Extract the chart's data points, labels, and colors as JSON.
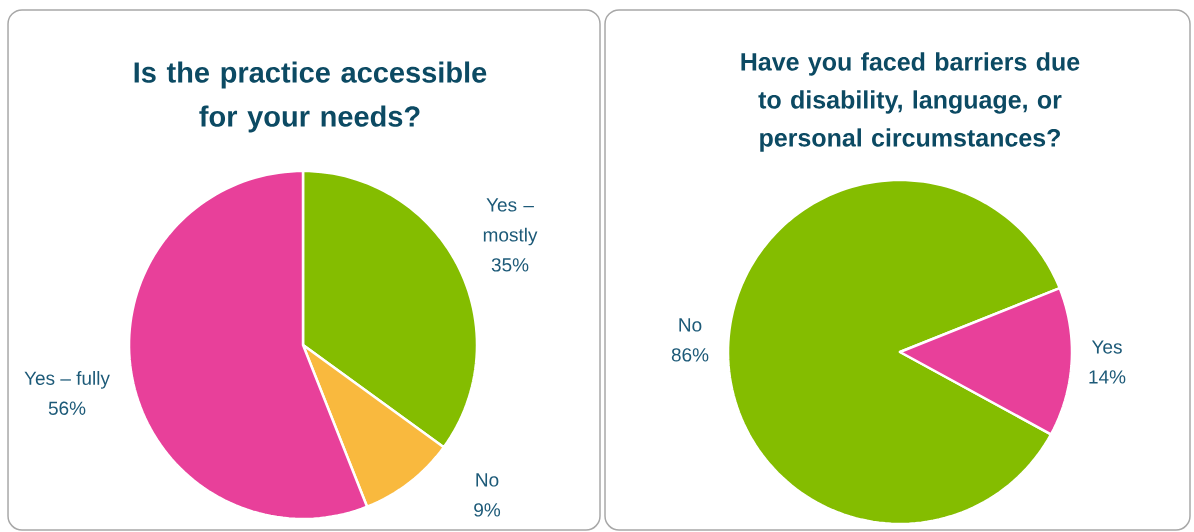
{
  "chart_data": [
    {
      "type": "pie",
      "title": "Is the practice accessible for your needs?",
      "categories": [
        "Yes – mostly",
        "No",
        "Yes – fully"
      ],
      "values": [
        35,
        9,
        56
      ],
      "colors": [
        "#84bd00",
        "#f9b93e",
        "#e8409a"
      ],
      "value_labels": [
        "35%",
        "9%",
        "56%"
      ]
    },
    {
      "type": "pie",
      "title": "Have you faced barriers due to disability, language, or personal circumstances?",
      "categories": [
        "No",
        "Yes"
      ],
      "values": [
        86,
        14
      ],
      "colors": [
        "#84bd00",
        "#e8409a"
      ],
      "value_labels": [
        "86%",
        "14%"
      ]
    }
  ]
}
